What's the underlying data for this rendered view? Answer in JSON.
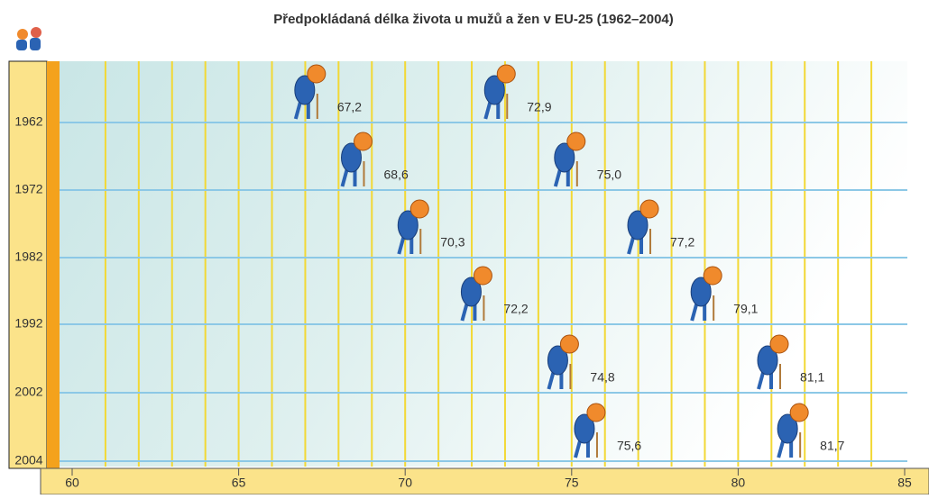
{
  "chart_data": {
    "type": "pictograph",
    "title": "Předpokládaná délka života u mužů a žen v EU-25 (1962–2004)",
    "categories": [
      "1962",
      "1972",
      "1982",
      "1992",
      "2002",
      "2004"
    ],
    "series": [
      {
        "color": "#2b63b3",
        "values": [
          67.2,
          68.6,
          70.3,
          72.2,
          74.8,
          75.6
        ],
        "value_labels": [
          "67,2",
          "68,6",
          "70,3",
          "72,2",
          "74,8",
          "75,6"
        ]
      },
      {
        "color": "#2b63b3",
        "values": [
          72.9,
          75.0,
          77.2,
          79.1,
          81.1,
          81.7
        ],
        "value_labels": [
          "72,9",
          "75,0",
          "77,2",
          "79,1",
          "81,1",
          "81,7"
        ]
      }
    ],
    "xlim": [
      60,
      85
    ],
    "xticks": [
      60,
      65,
      70,
      75,
      80,
      85
    ],
    "grid": true
  }
}
